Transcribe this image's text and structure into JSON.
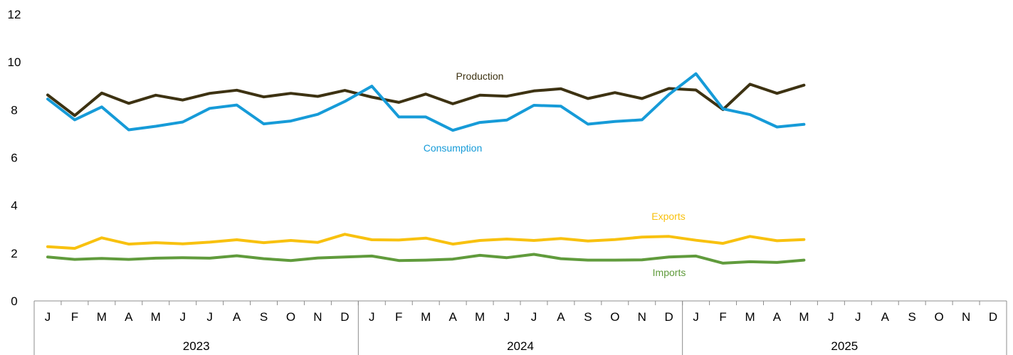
{
  "chart_data": {
    "type": "line",
    "ylim": [
      0,
      12
    ],
    "yticks": [
      0,
      2,
      4,
      6,
      8,
      10,
      12
    ],
    "grid": false,
    "legend": "inline",
    "years": [
      "2023",
      "2024",
      "2025"
    ],
    "month_labels": [
      "J",
      "F",
      "M",
      "A",
      "M",
      "J",
      "J",
      "A",
      "S",
      "O",
      "N",
      "D"
    ],
    "series": [
      {
        "name": "Production",
        "color": "#3d3212",
        "values": [
          8.62,
          7.76,
          8.7,
          8.27,
          8.61,
          8.41,
          8.69,
          8.82,
          8.54,
          8.69,
          8.56,
          8.81,
          8.53,
          8.31,
          8.66,
          8.25,
          8.61,
          8.57,
          8.79,
          8.88,
          8.47,
          8.72,
          8.47,
          8.89,
          8.83,
          8.01,
          9.07,
          8.69,
          9.03
        ]
      },
      {
        "name": "Consumption",
        "color": "#169bd8",
        "values": [
          8.45,
          7.58,
          8.12,
          7.16,
          7.31,
          7.49,
          8.06,
          8.2,
          7.41,
          7.53,
          7.81,
          8.35,
          8.99,
          7.7,
          7.7,
          7.14,
          7.47,
          7.57,
          8.19,
          8.15,
          7.4,
          7.51,
          7.58,
          8.64,
          9.51,
          8.04,
          7.8,
          7.28,
          7.39
        ]
      },
      {
        "name": "Exports",
        "color": "#f8c10f",
        "values": [
          2.27,
          2.2,
          2.64,
          2.38,
          2.44,
          2.39,
          2.46,
          2.56,
          2.44,
          2.53,
          2.45,
          2.79,
          2.56,
          2.55,
          2.63,
          2.38,
          2.53,
          2.59,
          2.53,
          2.61,
          2.51,
          2.57,
          2.67,
          2.7,
          2.54,
          2.41,
          2.7,
          2.52,
          2.57
        ]
      },
      {
        "name": "Imports",
        "color": "#609b3c",
        "values": [
          1.84,
          1.74,
          1.78,
          1.74,
          1.79,
          1.81,
          1.79,
          1.89,
          1.77,
          1.69,
          1.8,
          1.84,
          1.88,
          1.69,
          1.71,
          1.75,
          1.91,
          1.81,
          1.95,
          1.77,
          1.71,
          1.71,
          1.72,
          1.84,
          1.88,
          1.58,
          1.64,
          1.61,
          1.71
        ]
      }
    ]
  }
}
